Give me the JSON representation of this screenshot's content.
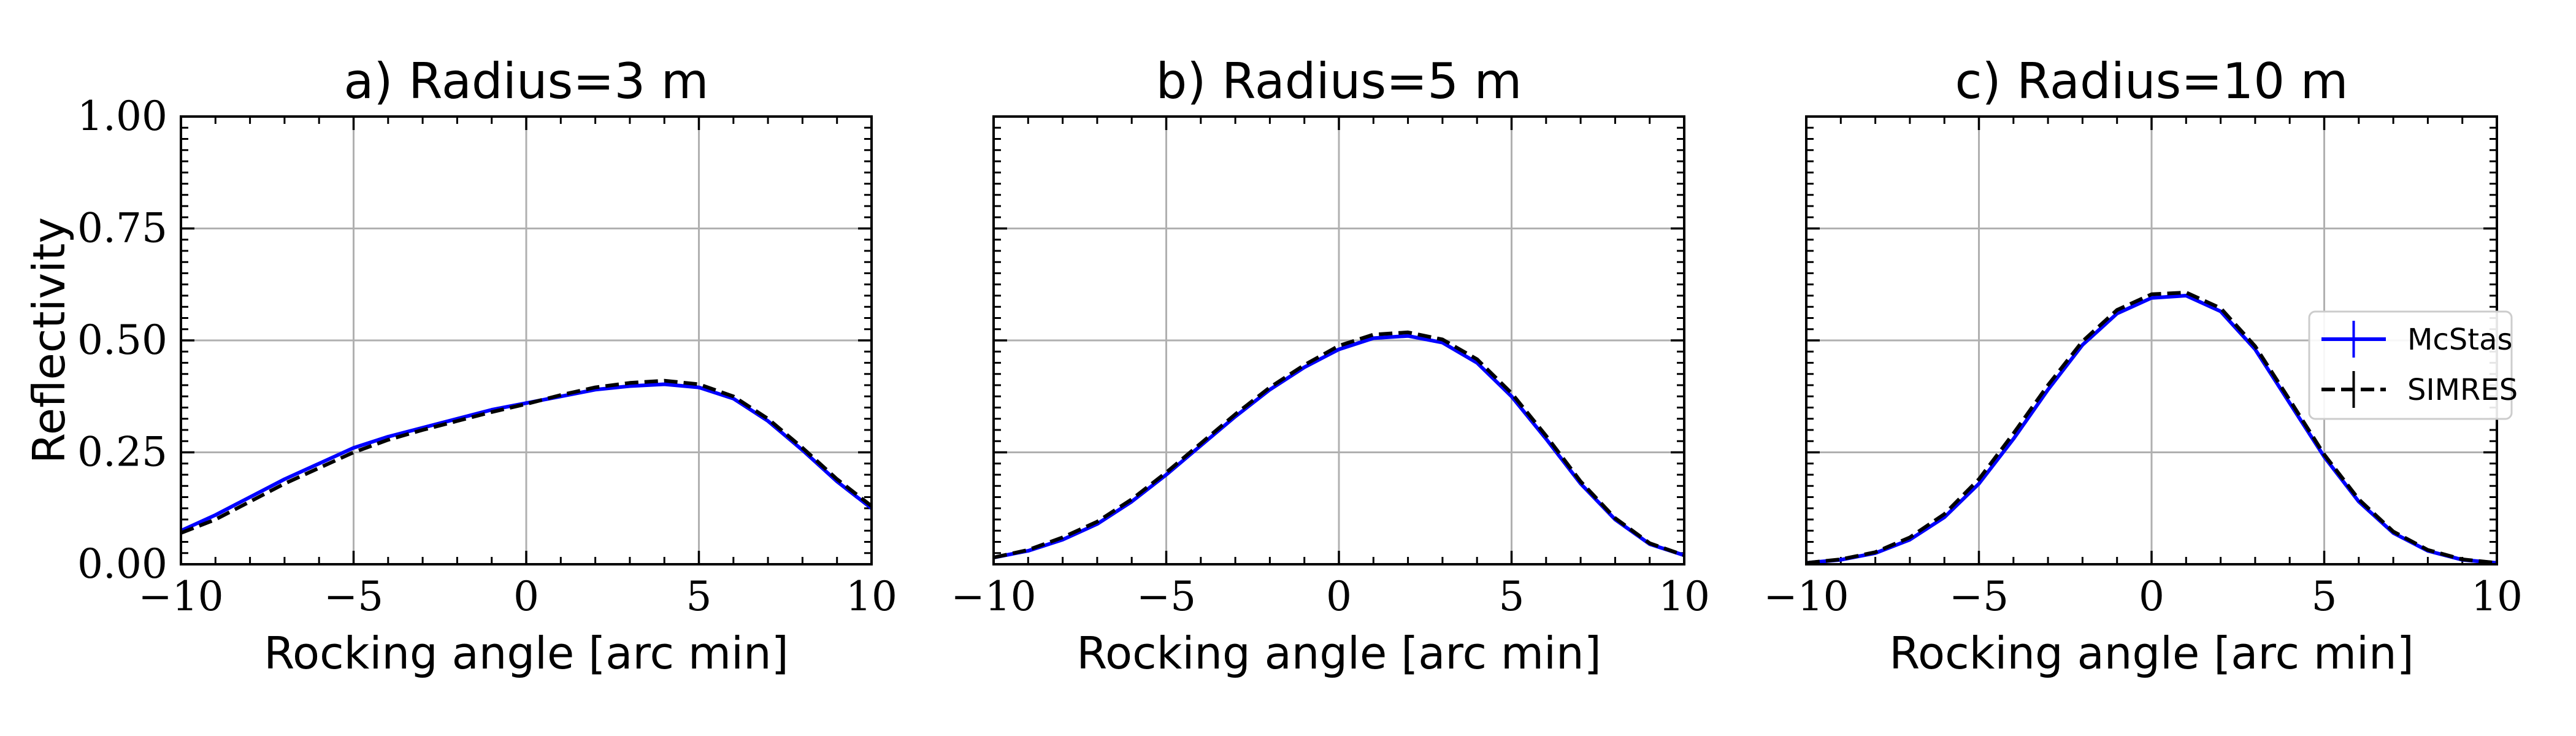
{
  "chart_data": [
    {
      "type": "line",
      "title": "a) Radius=3 m",
      "xlabel": "Rocking angle [arc min]",
      "ylabel": "Reflectivity",
      "xlim": [
        -10,
        10
      ],
      "ylim": [
        0,
        1
      ],
      "xticks": [
        -10,
        -5,
        0,
        5,
        10
      ],
      "xtick_labels": [
        "−10",
        "−5",
        "0",
        "5",
        "10"
      ],
      "yticks": [
        0,
        0.25,
        0.5,
        0.75,
        1.0
      ],
      "ytick_labels": [
        "0.00",
        "0.25",
        "0.50",
        "0.75",
        "1.00"
      ],
      "grid": true,
      "series": [
        {
          "name": "McStas",
          "color": "#0000ff",
          "style": "solid",
          "x": [
            -10,
            -9,
            -8,
            -7,
            -6,
            -5,
            -4,
            -3,
            -2,
            -1,
            0,
            1,
            2,
            3,
            4,
            5,
            6,
            7,
            8,
            9,
            10
          ],
          "y": [
            0.075,
            0.11,
            0.15,
            0.19,
            0.225,
            0.26,
            0.285,
            0.305,
            0.325,
            0.345,
            0.36,
            0.375,
            0.39,
            0.398,
            0.402,
            0.395,
            0.37,
            0.32,
            0.255,
            0.185,
            0.125
          ]
        },
        {
          "name": "SIMRES",
          "color": "#000000",
          "style": "dashed",
          "x": [
            -10,
            -9,
            -8,
            -7,
            -6,
            -5,
            -4,
            -3,
            -2,
            -1,
            0,
            1,
            2,
            3,
            4,
            5,
            6,
            7,
            8,
            9,
            10
          ],
          "y": [
            0.07,
            0.1,
            0.14,
            0.18,
            0.215,
            0.25,
            0.278,
            0.3,
            0.32,
            0.34,
            0.358,
            0.378,
            0.395,
            0.405,
            0.41,
            0.402,
            0.375,
            0.325,
            0.26,
            0.19,
            0.13
          ]
        }
      ]
    },
    {
      "type": "line",
      "title": "b) Radius=5 m",
      "xlabel": "Rocking angle [arc min]",
      "ylabel": "",
      "xlim": [
        -10,
        10
      ],
      "ylim": [
        0,
        1
      ],
      "xticks": [
        -10,
        -5,
        0,
        5,
        10
      ],
      "xtick_labels": [
        "−10",
        "−5",
        "0",
        "5",
        "10"
      ],
      "yticks": [
        0,
        0.25,
        0.5,
        0.75,
        1.0
      ],
      "ytick_labels": [],
      "grid": true,
      "series": [
        {
          "name": "McStas",
          "color": "#0000ff",
          "style": "solid",
          "x": [
            -10,
            -9,
            -8,
            -7,
            -6,
            -5,
            -4,
            -3,
            -2,
            -1,
            0,
            1,
            2,
            3,
            4,
            5,
            6,
            7,
            8,
            9,
            10
          ],
          "y": [
            0.015,
            0.03,
            0.055,
            0.09,
            0.14,
            0.2,
            0.265,
            0.33,
            0.39,
            0.44,
            0.48,
            0.505,
            0.51,
            0.495,
            0.45,
            0.375,
            0.28,
            0.18,
            0.1,
            0.045,
            0.02
          ]
        },
        {
          "name": "SIMRES",
          "color": "#000000",
          "style": "dashed",
          "x": [
            -10,
            -9,
            -8,
            -7,
            -6,
            -5,
            -4,
            -3,
            -2,
            -1,
            0,
            1,
            2,
            3,
            4,
            5,
            6,
            7,
            8,
            9,
            10
          ],
          "y": [
            0.015,
            0.032,
            0.06,
            0.095,
            0.145,
            0.205,
            0.27,
            0.335,
            0.395,
            0.445,
            0.488,
            0.513,
            0.518,
            0.502,
            0.458,
            0.382,
            0.287,
            0.185,
            0.103,
            0.047,
            0.02
          ]
        }
      ]
    },
    {
      "type": "line",
      "title": "c) Radius=10 m",
      "xlabel": "Rocking angle [arc min]",
      "ylabel": "",
      "xlim": [
        -10,
        10
      ],
      "ylim": [
        0,
        1
      ],
      "xticks": [
        -10,
        -5,
        0,
        5,
        10
      ],
      "xtick_labels": [
        "−10",
        "−5",
        "0",
        "5",
        "10"
      ],
      "yticks": [
        0,
        0.25,
        0.5,
        0.75,
        1.0
      ],
      "ytick_labels": [],
      "grid": true,
      "legend": {
        "position": "right",
        "entries": [
          "McStas",
          "SIMRES"
        ]
      },
      "series": [
        {
          "name": "McStas",
          "color": "#0000ff",
          "style": "solid",
          "x": [
            -10,
            -9,
            -8,
            -7,
            -6,
            -5,
            -4,
            -3,
            -2,
            -1,
            0,
            1,
            2,
            3,
            4,
            5,
            6,
            7,
            8,
            9,
            10
          ],
          "y": [
            0.003,
            0.01,
            0.025,
            0.055,
            0.105,
            0.18,
            0.28,
            0.39,
            0.49,
            0.56,
            0.595,
            0.6,
            0.565,
            0.48,
            0.36,
            0.24,
            0.14,
            0.07,
            0.03,
            0.01,
            0.003
          ]
        },
        {
          "name": "SIMRES",
          "color": "#000000",
          "style": "dashed",
          "x": [
            -10,
            -9,
            -8,
            -7,
            -6,
            -5,
            -4,
            -3,
            -2,
            -1,
            0,
            1,
            2,
            3,
            4,
            5,
            6,
            7,
            8,
            9,
            10
          ],
          "y": [
            0.003,
            0.011,
            0.027,
            0.06,
            0.112,
            0.19,
            0.292,
            0.4,
            0.498,
            0.568,
            0.603,
            0.607,
            0.572,
            0.487,
            0.367,
            0.245,
            0.145,
            0.073,
            0.032,
            0.011,
            0.003
          ]
        }
      ]
    }
  ]
}
